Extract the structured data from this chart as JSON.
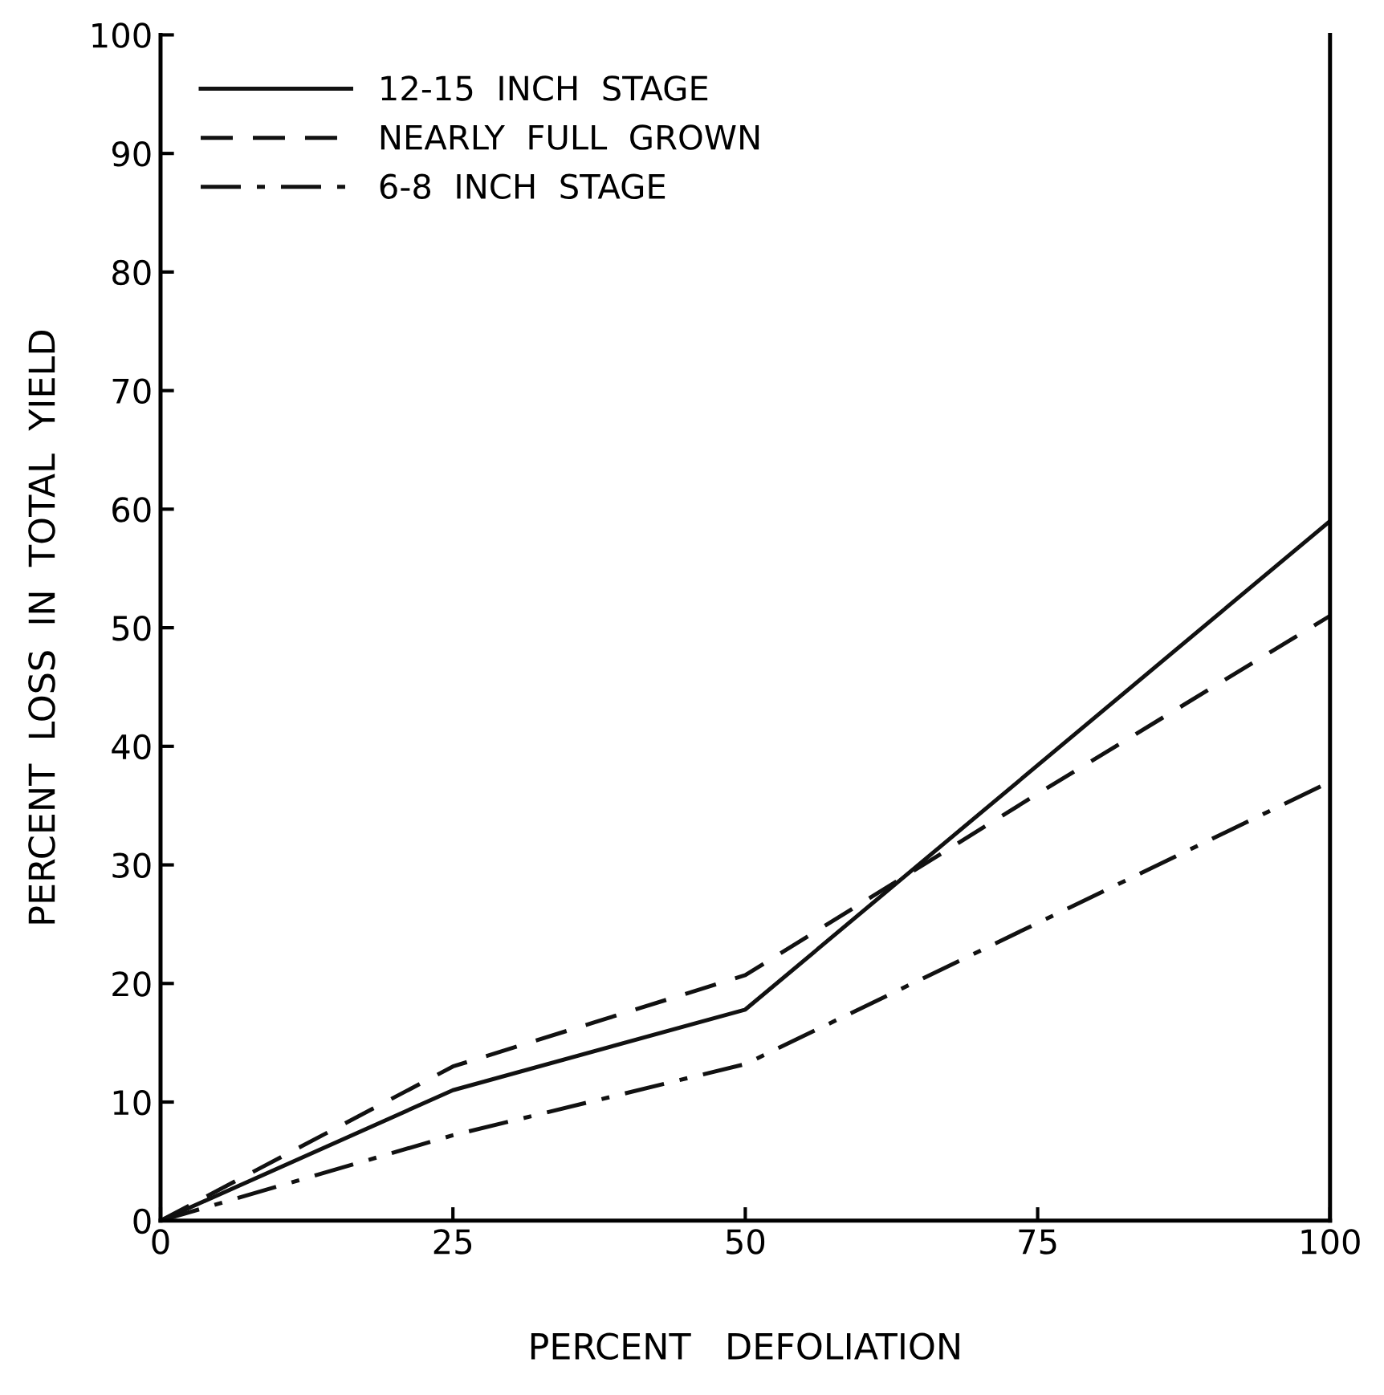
{
  "chart_data": {
    "type": "line",
    "xlabel": "PERCENT   DEFOLIATION",
    "ylabel": "PERCENT  LOSS  IN  TOTAL  YIELD",
    "series": [
      {
        "name": "12-15  INCH  STAGE",
        "color": "#111111",
        "line_style": "solid",
        "x": [
          0,
          25,
          50,
          100
        ],
        "values": [
          0,
          11,
          17.8,
          59
        ]
      },
      {
        "name": "NEARLY  FULL  GROWN",
        "color": "#111111",
        "line_style": "dashed",
        "x": [
          0,
          25,
          50,
          75,
          100
        ],
        "values": [
          0,
          13,
          20.7,
          36,
          51
        ]
      },
      {
        "name": "6-8  INCH  STAGE",
        "color": "#111111",
        "line_style": "dashdot",
        "x": [
          0,
          25,
          50,
          100
        ],
        "values": [
          0,
          7.2,
          13.2,
          37
        ]
      }
    ],
    "xlim": [
      0,
      100
    ],
    "xticks": [
      0,
      25,
      50,
      75,
      100
    ],
    "ylim": [
      0,
      100
    ],
    "yticks": [
      0,
      10,
      20,
      30,
      40,
      50,
      60,
      70,
      80,
      90,
      100
    ],
    "grid": false,
    "legend": "top left",
    "marker": "none"
  }
}
